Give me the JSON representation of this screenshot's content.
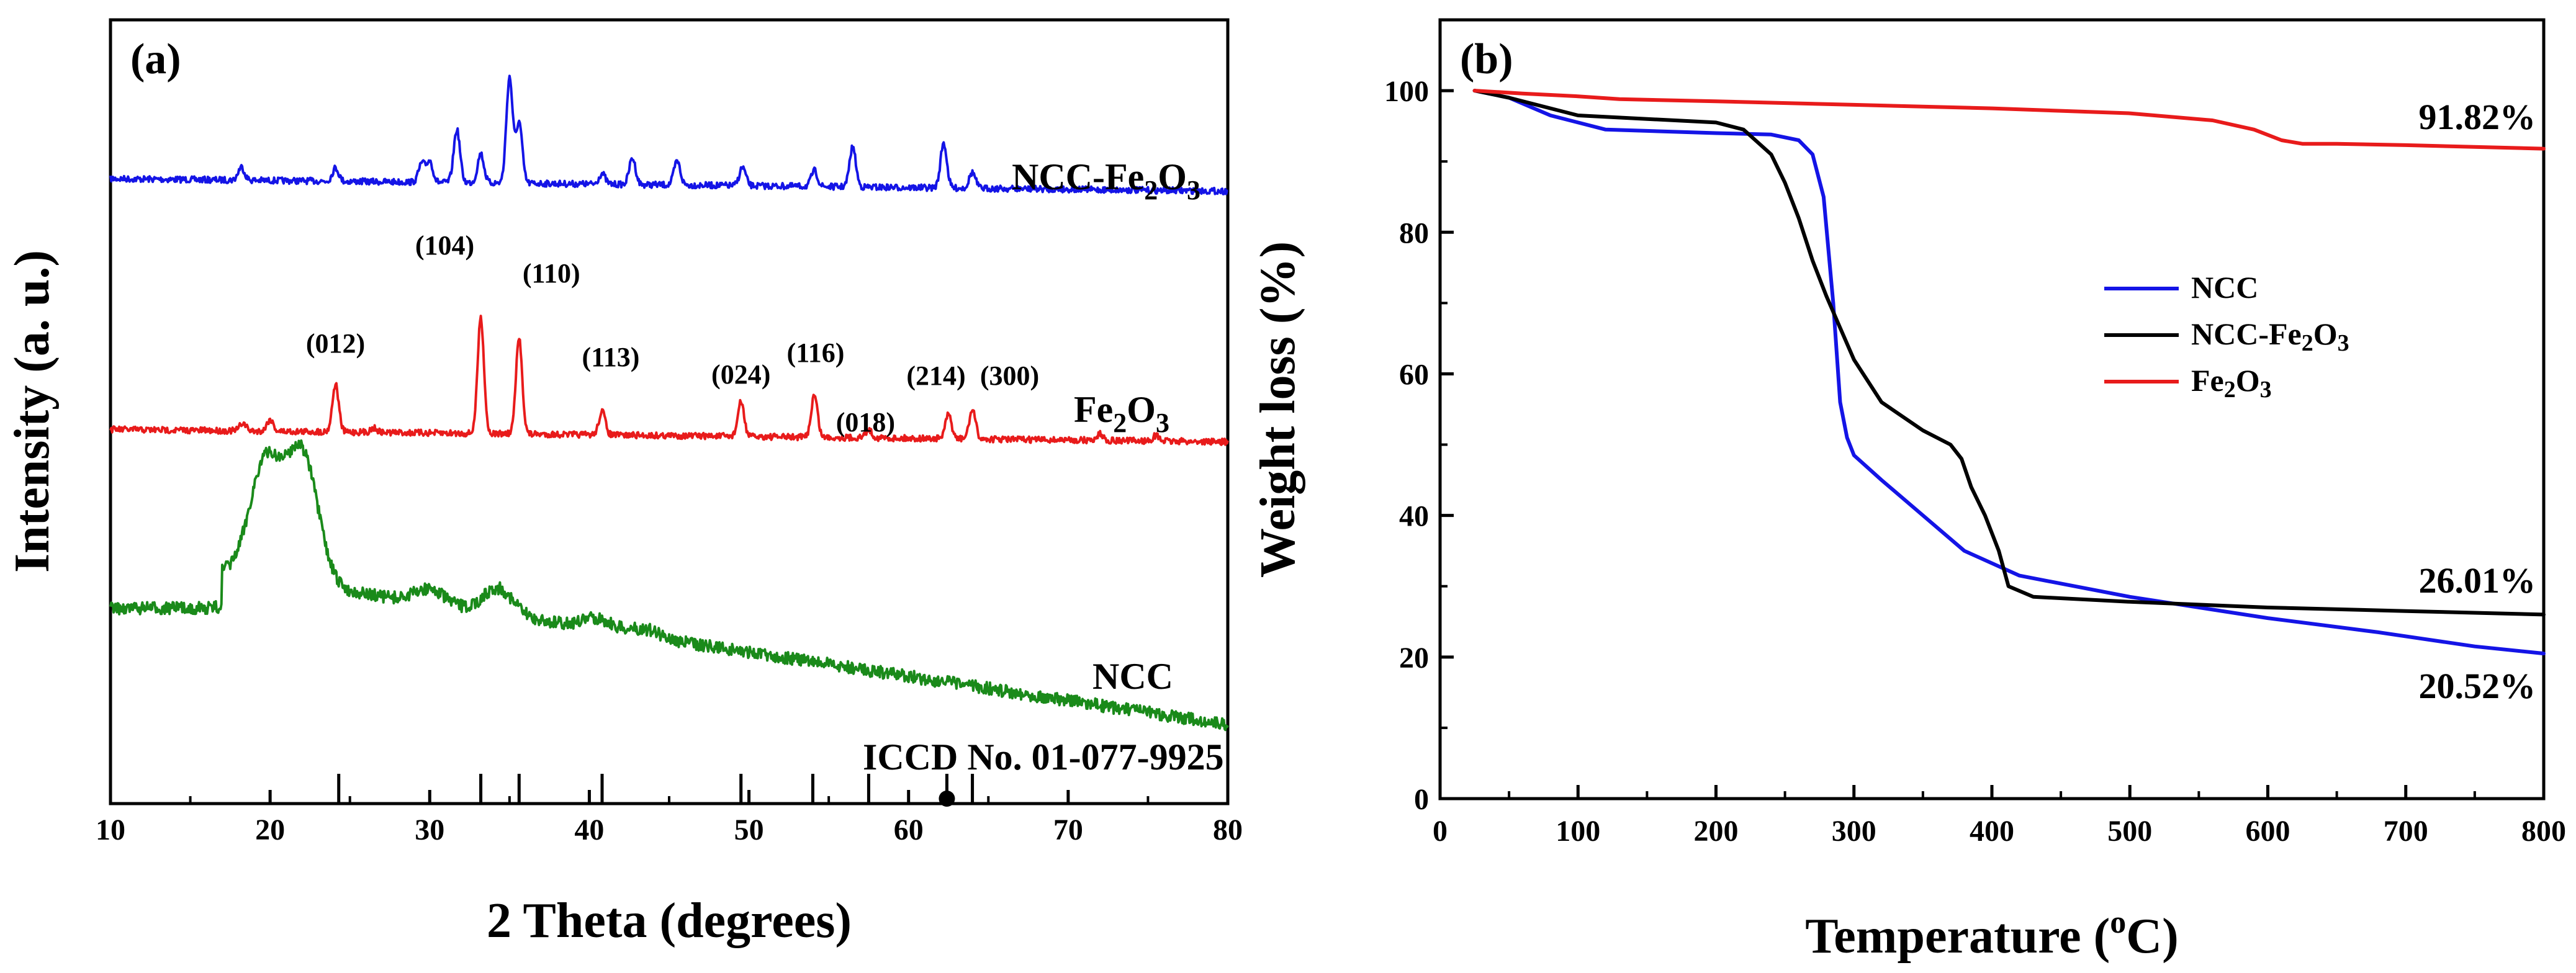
{
  "chart_data": [
    {
      "panel": "(a)",
      "type": "line",
      "xlabel": "2 Theta (degrees)",
      "ylabel": "Intensity (a. u.)",
      "xlim": [
        10,
        80
      ],
      "xticks": [
        "10",
        "20",
        "30",
        "40",
        "50",
        "60",
        "70",
        "80"
      ],
      "series": [
        {
          "name": "NCC-Fe2O3",
          "label_main": "NCC-Fe",
          "label_sub": "2",
          "label_main2": "O",
          "label_sub2": "3",
          "color": "#1414e6",
          "peaks": [
            [
              18.2,
              0.25
            ],
            [
              24.1,
              0.25
            ],
            [
              29.5,
              0.35
            ],
            [
              30.0,
              0.4
            ],
            [
              31.7,
              1.0
            ],
            [
              33.2,
              0.55
            ],
            [
              35.0,
              2.0
            ],
            [
              35.6,
              1.15
            ],
            [
              40.8,
              0.2
            ],
            [
              42.7,
              0.5
            ],
            [
              45.5,
              0.45
            ],
            [
              49.6,
              0.35
            ],
            [
              54.1,
              0.3
            ],
            [
              56.5,
              0.75
            ],
            [
              62.2,
              0.85
            ],
            [
              64.0,
              0.3
            ]
          ]
        },
        {
          "name": "Fe2O3",
          "label_main": "Fe",
          "label_sub": "2",
          "label_main2": "O",
          "label_sub2": "3",
          "color": "#e81b1b",
          "peaks": [
            [
              18.3,
              0.15
            ],
            [
              20.0,
              0.22
            ],
            [
              24.1,
              0.9
            ],
            [
              26.5,
              0.08
            ],
            [
              33.2,
              2.2
            ],
            [
              35.6,
              1.8
            ],
            [
              40.8,
              0.45
            ],
            [
              49.5,
              0.65
            ],
            [
              54.1,
              0.8
            ],
            [
              57.5,
              0.15
            ],
            [
              62.5,
              0.45
            ],
            [
              64.0,
              0.55
            ],
            [
              72.0,
              0.12
            ],
            [
              75.5,
              0.1
            ]
          ]
        },
        {
          "name": "NCC",
          "label_main": "NCC",
          "label_sub": "",
          "label_main2": "",
          "label_sub2": "",
          "color": "#1a8a1a",
          "peaks": [
            [
              19.7,
              1.55
            ],
            [
              22.0,
              1.75
            ],
            [
              30.0,
              0.2
            ],
            [
              34.3,
              0.35
            ],
            [
              40.5,
              0.15
            ],
            [
              43.5,
              0.1
            ]
          ]
        }
      ],
      "reflections": [
        "(012)",
        "(104)",
        "(110)",
        "(113)",
        "(024)",
        "(116)",
        "(018)",
        "(214)",
        "(300)"
      ],
      "reflection_positions": [
        24.1,
        33.2,
        35.6,
        40.8,
        49.5,
        54.1,
        57.5,
        62.5,
        64.0
      ],
      "reference_label": "ICCD No. 01-077-9925",
      "reference_lines": [
        24.3,
        33.2,
        35.6,
        40.8,
        49.5,
        54.0,
        57.5,
        62.4,
        64.0
      ]
    },
    {
      "panel": "(b)",
      "type": "line",
      "xlabel_main": "Temperature (",
      "xlabel_sup": "o",
      "xlabel_end": "C)",
      "ylabel": "Weight loss (%)",
      "xlim": [
        0,
        800
      ],
      "ylim": [
        0,
        110
      ],
      "xticks": [
        0,
        100,
        200,
        300,
        400,
        500,
        600,
        700,
        800
      ],
      "yticks": [
        0,
        20,
        40,
        60,
        80,
        100
      ],
      "legend_position": "center-right",
      "series": [
        {
          "name": "NCC",
          "color": "#1414e6",
          "x": [
            25,
            50,
            80,
            120,
            200,
            240,
            260,
            270,
            278,
            285,
            290,
            295,
            300,
            320,
            350,
            380,
            420,
            500,
            600,
            680,
            750,
            800
          ],
          "y": [
            100,
            99,
            96.5,
            94.5,
            94,
            93.8,
            93,
            91,
            85,
            70,
            56,
            51,
            48.5,
            45,
            40,
            35,
            31.5,
            28.5,
            25.5,
            23.5,
            21.5,
            20.5
          ]
        },
        {
          "name": "NCC-Fe2O3",
          "color": "#000000",
          "x": [
            25,
            50,
            100,
            150,
            200,
            220,
            240,
            250,
            260,
            270,
            280,
            290,
            300,
            320,
            350,
            370,
            378,
            385,
            395,
            405,
            412,
            430,
            500,
            600,
            700,
            800
          ],
          "y": [
            100,
            99,
            96.5,
            96,
            95.5,
            94.5,
            91,
            87,
            82,
            76,
            71,
            66.5,
            62,
            56,
            52,
            50,
            48,
            44,
            40,
            35,
            30,
            28.5,
            27.8,
            27,
            26.5,
            26
          ]
        },
        {
          "name": "Fe2O3",
          "color": "#e81b1b",
          "x": [
            25,
            60,
            100,
            130,
            200,
            300,
            400,
            500,
            560,
            590,
            610,
            625,
            650,
            700,
            800
          ],
          "y": [
            100,
            99.6,
            99.2,
            98.8,
            98.5,
            98,
            97.5,
            96.8,
            95.8,
            94.5,
            93,
            92.5,
            92.5,
            92.3,
            91.8
          ]
        }
      ],
      "legend": [
        {
          "main": "NCC",
          "sub": ""
        },
        {
          "main": "NCC-Fe",
          "sub": "2",
          "main2": "O",
          "sub2": "3"
        },
        {
          "main": "Fe",
          "sub": "2",
          "main2": "O",
          "sub2": "3"
        }
      ],
      "annotations": [
        "91.82%",
        "26.01%",
        "20.52%"
      ]
    }
  ]
}
